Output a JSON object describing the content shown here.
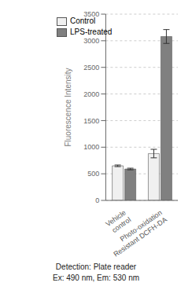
{
  "chart_data": {
    "type": "bar",
    "ylabel": "Fluorescence Intensity",
    "categories": [
      "Vehicle\ncontrol",
      "Photo-oxidation\nResistant DCFH-DA"
    ],
    "series": [
      {
        "name": "Control",
        "color": "#f0f0f0",
        "values": [
          650,
          880
        ],
        "errors": [
          15,
          80
        ]
      },
      {
        "name": "LPS-treated",
        "color": "#808080",
        "values": [
          590,
          3080
        ],
        "errors": [
          15,
          130
        ]
      }
    ],
    "ylim": [
      0,
      3500
    ],
    "yticks": [
      0,
      500,
      1000,
      1500,
      2000,
      2500,
      3000,
      3500
    ],
    "grid": true,
    "legend": "upper left",
    "annotations": [
      "Detection: Plate reader",
      "Ex: 490 nm, Em: 530 nm"
    ]
  }
}
